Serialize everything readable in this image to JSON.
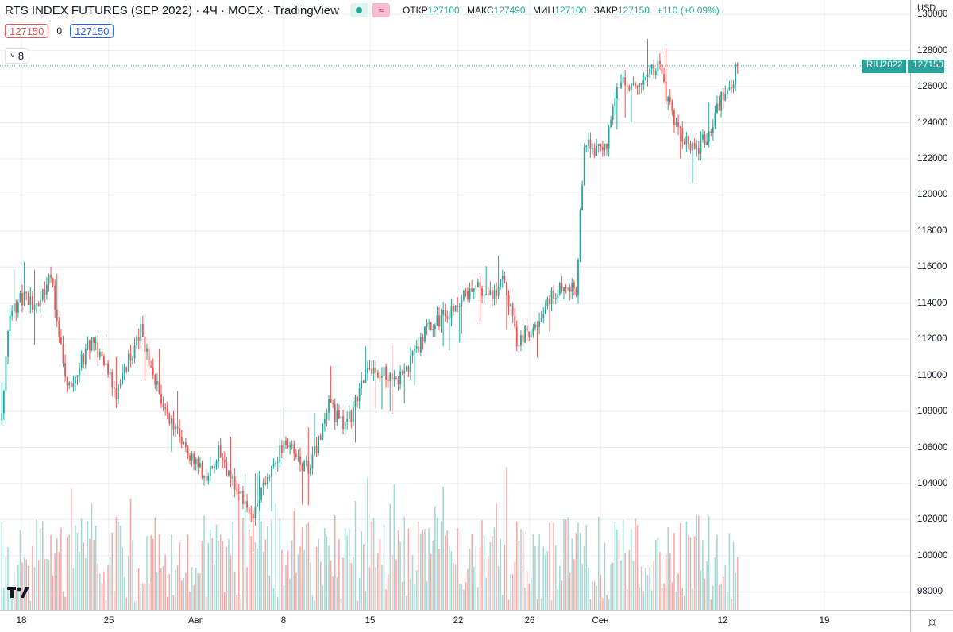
{
  "header": {
    "title": "RTS INDEX FUTURES (SEP 2022) · 4Ч · MOEX · TradingView",
    "open_label": "ОТКР",
    "open": "127100",
    "high_label": "МАКС",
    "high": "127490",
    "low_label": "МИН",
    "low": "127100",
    "close_label": "ЗАКР",
    "close": "127150",
    "change": "+110 (+0.09%)",
    "bid": "127150",
    "spread": "0",
    "ask": "127150",
    "indicators_count": "8"
  },
  "price_tag": {
    "symbol": "RIU2022",
    "value": "127150"
  },
  "colors": {
    "up": "#26a69a",
    "down": "#ef5350",
    "up_volume": "#a3d9d2",
    "down_volume": "#f6a9a7",
    "grid": "#e8ebf0"
  },
  "chart_data": {
    "type": "candlestick",
    "currency": "USD",
    "ylim": [
      97000,
      130800
    ],
    "y_ticks": [
      98000,
      100000,
      102000,
      104000,
      106000,
      108000,
      110000,
      112000,
      114000,
      116000,
      118000,
      120000,
      122000,
      124000,
      126000,
      128000,
      130000
    ],
    "x_tick_labels": [
      "18",
      "25",
      "Авг",
      "8",
      "15",
      "22",
      "26",
      "Сен",
      "12",
      "19"
    ],
    "last_price": 127150,
    "close_path_anchors": [
      [
        0,
        108000
      ],
      [
        4,
        113500
      ],
      [
        12,
        114500
      ],
      [
        16,
        113800
      ],
      [
        24,
        115500
      ],
      [
        32,
        109000
      ],
      [
        44,
        112000
      ],
      [
        56,
        109000
      ],
      [
        68,
        112500
      ],
      [
        78,
        108500
      ],
      [
        90,
        106000
      ],
      [
        100,
        104300
      ],
      [
        106,
        105800
      ],
      [
        114,
        103800
      ],
      [
        122,
        102200
      ],
      [
        138,
        106300
      ],
      [
        150,
        104700
      ],
      [
        160,
        108300
      ],
      [
        168,
        107000
      ],
      [
        180,
        110400
      ],
      [
        195,
        109800
      ],
      [
        208,
        112500
      ],
      [
        220,
        113700
      ],
      [
        232,
        115000
      ],
      [
        240,
        114300
      ],
      [
        246,
        115300
      ],
      [
        252,
        112000
      ],
      [
        260,
        112700
      ],
      [
        268,
        114300
      ],
      [
        276,
        115100
      ],
      [
        281,
        114700
      ],
      [
        285,
        123000
      ],
      [
        290,
        122300
      ],
      [
        296,
        122700
      ],
      [
        302,
        126300
      ],
      [
        310,
        126200
      ],
      [
        318,
        127000
      ],
      [
        322,
        127300
      ],
      [
        326,
        125100
      ],
      [
        332,
        123400
      ],
      [
        340,
        122500
      ],
      [
        348,
        123800
      ],
      [
        352,
        125500
      ],
      [
        357,
        126200
      ],
      [
        360,
        127150
      ]
    ],
    "bars_total": 361
  }
}
